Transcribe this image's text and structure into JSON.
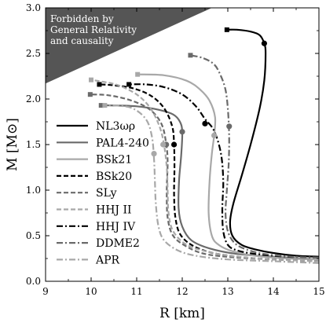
{
  "chart_data": {
    "type": "line",
    "xlabel": "R [km]",
    "ylabel": "M [M⊙]",
    "xlim": [
      9,
      15
    ],
    "ylim": [
      0,
      3
    ],
    "xticks": [
      "9",
      "10",
      "11",
      "12",
      "13",
      "14",
      "15"
    ],
    "yticks": [
      "0.0",
      "0.5",
      "1.0",
      "1.5",
      "2.0",
      "2.5",
      "3.0"
    ],
    "grid": false,
    "legend_position": "left",
    "annotation": {
      "text": [
        "Forbidden by",
        "General Relativity",
        "and causality"
      ],
      "fill": "#555555",
      "region_points": [
        [
          9,
          2.17
        ],
        [
          12.65,
          3.0
        ],
        [
          9,
          3.0
        ]
      ]
    },
    "series": [
      {
        "name": "NL3ωρ",
        "color": "#000000",
        "dash": "",
        "width": 2.2,
        "points": [
          [
            15,
            0.27
          ],
          [
            14.5,
            0.28
          ],
          [
            14,
            0.31
          ],
          [
            13.6,
            0.35
          ],
          [
            13.3,
            0.4
          ],
          [
            13.1,
            0.5
          ],
          [
            13.05,
            0.65
          ],
          [
            13.12,
            0.85
          ],
          [
            13.3,
            1.15
          ],
          [
            13.5,
            1.5
          ],
          [
            13.7,
            1.9
          ],
          [
            13.8,
            2.2
          ],
          [
            13.83,
            2.5
          ],
          [
            13.8,
            2.61
          ],
          [
            13.7,
            2.7
          ],
          [
            13.5,
            2.74
          ],
          [
            13.2,
            2.76
          ],
          [
            12.98,
            2.76
          ]
        ],
        "max_marker": [
          12.98,
          2.76
        ],
        "dot_marker": [
          13.8,
          2.61
        ]
      },
      {
        "name": "PAL4-240",
        "color": "#6a6a6a",
        "dash": "",
        "width": 2.2,
        "points": [
          [
            15,
            0.24
          ],
          [
            14,
            0.27
          ],
          [
            13.2,
            0.3
          ],
          [
            12.6,
            0.36
          ],
          [
            12.2,
            0.45
          ],
          [
            12.0,
            0.6
          ],
          [
            11.92,
            0.8
          ],
          [
            11.93,
            1.1
          ],
          [
            11.98,
            1.4
          ],
          [
            12.0,
            1.64
          ],
          [
            11.95,
            1.75
          ],
          [
            11.8,
            1.83
          ],
          [
            11.5,
            1.88
          ],
          [
            11.0,
            1.92
          ],
          [
            10.4,
            1.93
          ],
          [
            10.22,
            1.93
          ]
        ],
        "max_marker": [
          10.22,
          1.93
        ],
        "dot_marker": [
          12.0,
          1.64
        ]
      },
      {
        "name": "BSk21",
        "color": "#a8a8a8",
        "dash": "",
        "width": 2.2,
        "points": [
          [
            15,
            0.24
          ],
          [
            14.3,
            0.25
          ],
          [
            13.6,
            0.28
          ],
          [
            13.1,
            0.33
          ],
          [
            12.8,
            0.4
          ],
          [
            12.65,
            0.5
          ],
          [
            12.58,
            0.75
          ],
          [
            12.6,
            1.1
          ],
          [
            12.65,
            1.4
          ],
          [
            12.7,
            1.6
          ],
          [
            12.72,
            1.8
          ],
          [
            12.6,
            1.98
          ],
          [
            12.4,
            2.1
          ],
          [
            12.1,
            2.2
          ],
          [
            11.6,
            2.26
          ],
          [
            11.02,
            2.27
          ]
        ],
        "max_marker": [
          11.02,
          2.27
        ],
        "dot_marker": [
          12.7,
          1.6
        ]
      },
      {
        "name": "BSk20",
        "color": "#000000",
        "dash": "6,3",
        "width": 2.2,
        "points": [
          [
            15,
            0.22
          ],
          [
            14,
            0.24
          ],
          [
            13.2,
            0.27
          ],
          [
            12.6,
            0.32
          ],
          [
            12.2,
            0.4
          ],
          [
            11.95,
            0.52
          ],
          [
            11.85,
            0.7
          ],
          [
            11.82,
            0.95
          ],
          [
            11.83,
            1.25
          ],
          [
            11.82,
            1.5
          ],
          [
            11.78,
            1.7
          ],
          [
            11.6,
            1.9
          ],
          [
            11.3,
            2.04
          ],
          [
            10.9,
            2.12
          ],
          [
            10.5,
            2.15
          ],
          [
            10.18,
            2.16
          ]
        ],
        "max_marker": [
          10.18,
          2.16
        ],
        "dot_marker": [
          11.82,
          1.5
        ]
      },
      {
        "name": "SLy",
        "color": "#6a6a6a",
        "dash": "6,3",
        "width": 2.2,
        "points": [
          [
            15,
            0.22
          ],
          [
            14,
            0.24
          ],
          [
            13.2,
            0.26
          ],
          [
            12.5,
            0.3
          ],
          [
            12.1,
            0.38
          ],
          [
            11.8,
            0.5
          ],
          [
            11.68,
            0.7
          ],
          [
            11.66,
            1.0
          ],
          [
            11.68,
            1.3
          ],
          [
            11.65,
            1.5
          ],
          [
            11.55,
            1.72
          ],
          [
            11.3,
            1.88
          ],
          [
            10.9,
            1.98
          ],
          [
            10.4,
            2.04
          ],
          [
            9.98,
            2.05
          ]
        ],
        "max_marker": [
          9.98,
          2.05
        ],
        "dot_marker": [
          11.65,
          1.5
        ]
      },
      {
        "name": "HHJ II",
        "color": "#a8a8a8",
        "dash": "6,3",
        "width": 2.2,
        "points": [
          [
            15,
            0.22
          ],
          [
            14,
            0.24
          ],
          [
            13.2,
            0.27
          ],
          [
            12.6,
            0.32
          ],
          [
            12.1,
            0.4
          ],
          [
            11.8,
            0.55
          ],
          [
            11.7,
            0.75
          ],
          [
            11.68,
            1.0
          ],
          [
            11.66,
            1.25
          ],
          [
            11.6,
            1.5
          ],
          [
            11.5,
            1.7
          ],
          [
            11.3,
            1.9
          ],
          [
            11.0,
            2.05
          ],
          [
            10.6,
            2.15
          ],
          [
            10.25,
            2.19
          ],
          [
            10.0,
            2.21
          ]
        ],
        "max_marker": [
          10.0,
          2.21
        ],
        "dot_marker": [
          11.58,
          1.5
        ]
      },
      {
        "name": "HHJ IV",
        "color": "#000000",
        "dash": "8,3,2,3",
        "width": 2.2,
        "points": [
          [
            15,
            0.26
          ],
          [
            14.3,
            0.27
          ],
          [
            13.6,
            0.3
          ],
          [
            13.2,
            0.34
          ],
          [
            13.0,
            0.4
          ],
          [
            12.9,
            0.55
          ],
          [
            12.88,
            0.8
          ],
          [
            12.9,
            1.1
          ],
          [
            12.85,
            1.4
          ],
          [
            12.7,
            1.65
          ],
          [
            12.5,
            1.78
          ],
          [
            12.3,
            1.92
          ],
          [
            12.0,
            2.05
          ],
          [
            11.6,
            2.13
          ],
          [
            11.2,
            2.16
          ],
          [
            10.83,
            2.16
          ]
        ],
        "max_marker": [
          10.83,
          2.16
        ],
        "dot_marker": [
          12.5,
          1.73
        ]
      },
      {
        "name": "DDME2",
        "color": "#6a6a6a",
        "dash": "8,3,2,3",
        "width": 2.2,
        "points": [
          [
            15,
            0.26
          ],
          [
            14.4,
            0.27
          ],
          [
            13.8,
            0.3
          ],
          [
            13.4,
            0.35
          ],
          [
            13.15,
            0.42
          ],
          [
            13.0,
            0.55
          ],
          [
            12.95,
            0.75
          ],
          [
            12.98,
            1.0
          ],
          [
            13.02,
            1.3
          ],
          [
            13.03,
            1.6
          ],
          [
            13.0,
            1.9
          ],
          [
            12.95,
            2.1
          ],
          [
            12.85,
            2.25
          ],
          [
            12.7,
            2.38
          ],
          [
            12.45,
            2.45
          ],
          [
            12.18,
            2.48
          ]
        ],
        "max_marker": [
          12.18,
          2.48
        ],
        "dot_marker": [
          13.03,
          1.7
        ]
      },
      {
        "name": "APR",
        "color": "#a8a8a8",
        "dash": "8,3,2,3",
        "width": 2.2,
        "points": [
          [
            15,
            0.2
          ],
          [
            14,
            0.22
          ],
          [
            13,
            0.24
          ],
          [
            12.3,
            0.28
          ],
          [
            11.9,
            0.34
          ],
          [
            11.6,
            0.45
          ],
          [
            11.48,
            0.6
          ],
          [
            11.42,
            0.85
          ],
          [
            11.4,
            1.1
          ],
          [
            11.38,
            1.35
          ],
          [
            11.33,
            1.6
          ],
          [
            11.2,
            1.78
          ],
          [
            10.9,
            1.9
          ],
          [
            10.5,
            1.93
          ],
          [
            10.3,
            1.93
          ]
        ],
        "max_marker": [
          10.3,
          1.93
        ],
        "dot_marker": [
          11.38,
          1.4
        ]
      }
    ]
  }
}
